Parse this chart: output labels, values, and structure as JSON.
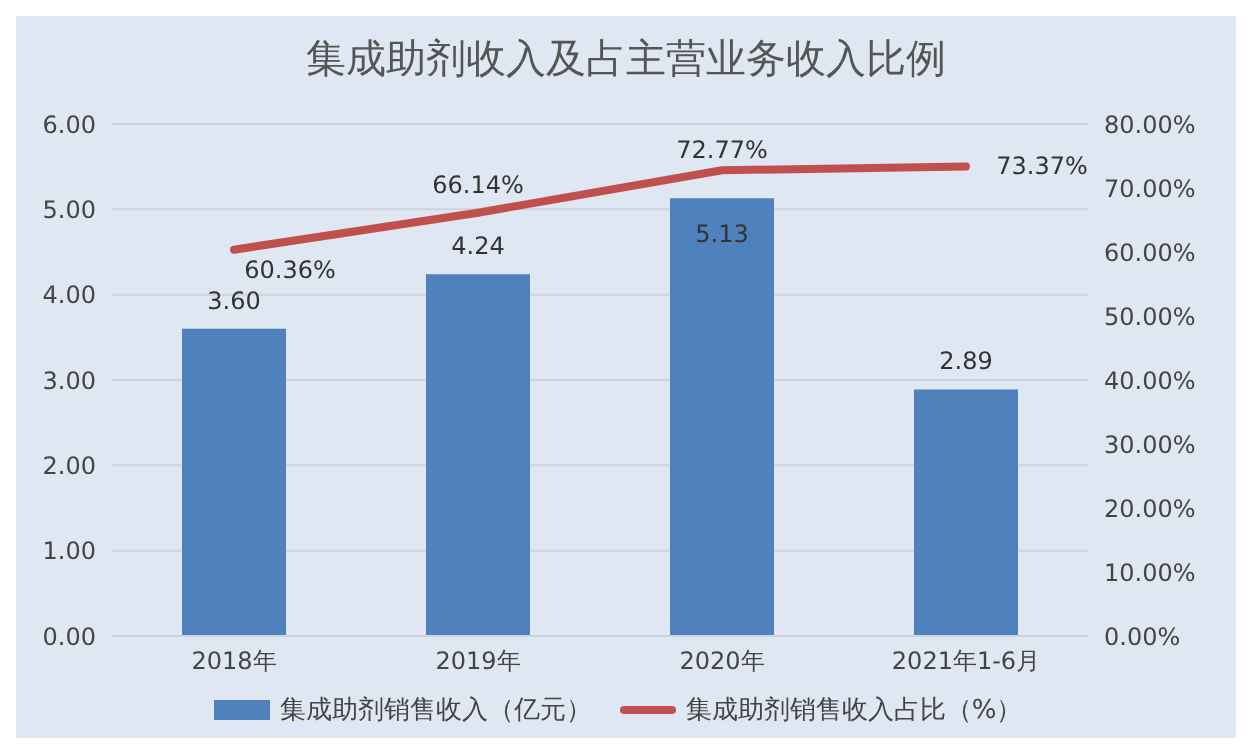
{
  "chart_data": {
    "type": "bar",
    "title": "集成助剂收入及占主营业务收入比例",
    "categories": [
      "2018年",
      "2019年",
      "2020年",
      "2021年1-6月"
    ],
    "series": [
      {
        "name": "集成助剂销售收入（亿元）",
        "color": "#4f81bd",
        "values": [
          3.6,
          4.24,
          5.13,
          2.89
        ],
        "value_labels": [
          "3.60",
          "4.24",
          "5.13",
          "2.89"
        ]
      },
      {
        "name": "集成助剂销售收入占比（%）",
        "type": "line",
        "axis": "y2",
        "color": "#c0504d",
        "values": [
          60.36,
          66.14,
          72.77,
          73.37
        ],
        "value_labels": [
          "60.36%",
          "66.14%",
          "72.77%",
          "73.37%"
        ]
      }
    ],
    "ylim": [
      0,
      6
    ],
    "yticks": [
      {
        "value": 0,
        "label": "0.00"
      },
      {
        "value": 1,
        "label": "1.00"
      },
      {
        "value": 2,
        "label": "2.00"
      },
      {
        "value": 3,
        "label": "3.00"
      },
      {
        "value": 4,
        "label": "4.00"
      },
      {
        "value": 5,
        "label": "5.00"
      },
      {
        "value": 6,
        "label": "6.00"
      }
    ],
    "y2lim": [
      0,
      80
    ],
    "y2ticks": [
      {
        "value": 0,
        "label": "0.00%"
      },
      {
        "value": 10,
        "label": "10.00%"
      },
      {
        "value": 20,
        "label": "20.00%"
      },
      {
        "value": 30,
        "label": "30.00%"
      },
      {
        "value": 40,
        "label": "40.00%"
      },
      {
        "value": 50,
        "label": "50.00%"
      },
      {
        "value": 60,
        "label": "60.00%"
      },
      {
        "value": 70,
        "label": "70.00%"
      },
      {
        "value": 80,
        "label": "80.00%"
      }
    ],
    "grid": "y",
    "legend": "bottom",
    "marker": "none",
    "line_style": "solid"
  }
}
